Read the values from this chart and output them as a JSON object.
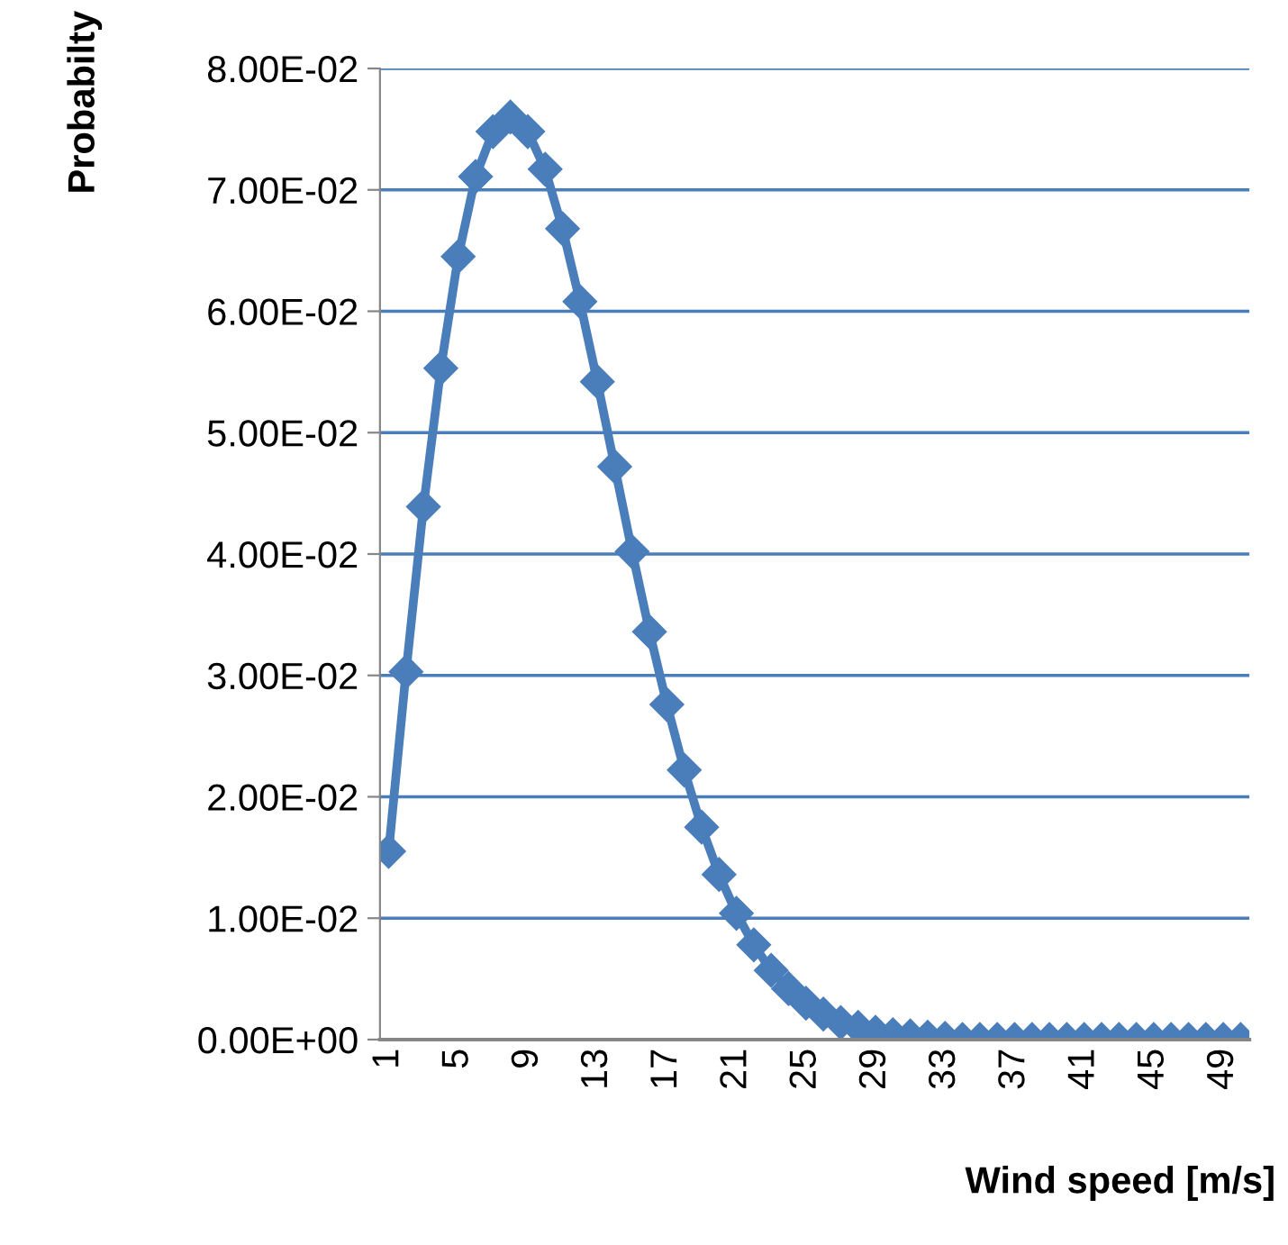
{
  "chart_data": {
    "type": "line",
    "xlabel": "Wind speed [m/s]",
    "ylabel": "Probabilty",
    "categories": [
      "1",
      null,
      null,
      null,
      "5",
      null,
      null,
      null,
      "9",
      null,
      null,
      null,
      "13",
      null,
      null,
      null,
      "17",
      null,
      null,
      null,
      "21",
      null,
      null,
      null,
      "25",
      null,
      null,
      null,
      "29",
      null,
      null,
      null,
      "33",
      null,
      null,
      null,
      "37",
      null,
      null,
      null,
      "41",
      null,
      null,
      null,
      "45",
      null,
      null,
      null,
      "49",
      null
    ],
    "series": [
      {
        "color": "#4a7ebb",
        "values": [
          0.0155,
          0.0303,
          0.0439,
          0.0553,
          0.0645,
          0.0711,
          0.0748,
          0.076,
          0.0748,
          0.0717,
          0.0668,
          0.0608,
          0.0542,
          0.0472,
          0.0402,
          0.0336,
          0.0276,
          0.0222,
          0.0175,
          0.0136,
          0.0104,
          0.0078,
          0.0057,
          0.0042,
          0.003,
          0.0021,
          0.0014,
          0.001,
          0.0006,
          0.0004,
          0.0003,
          0.0002,
          0.0001,
          0,
          0,
          0,
          0,
          0,
          0,
          0,
          0,
          0,
          0,
          0,
          0,
          0,
          0,
          0,
          0,
          0
        ]
      }
    ],
    "ylim": [
      0,
      0.08
    ],
    "yticks": [
      {
        "value": 0,
        "label": "0.00E+00"
      },
      {
        "value": 0.01,
        "label": "1.00E-02"
      },
      {
        "value": 0.02,
        "label": "2.00E-02"
      },
      {
        "value": 0.03,
        "label": "3.00E-02"
      },
      {
        "value": 0.04,
        "label": "4.00E-02"
      },
      {
        "value": 0.05,
        "label": "5.00E-02"
      },
      {
        "value": 0.06,
        "label": "6.00E-02"
      },
      {
        "value": 0.07,
        "label": "7.00E-02"
      },
      {
        "value": 0.08,
        "label": "8.00E-02"
      }
    ],
    "grid": "y",
    "marker": "diamond",
    "line_style": "solid",
    "legend": false
  }
}
